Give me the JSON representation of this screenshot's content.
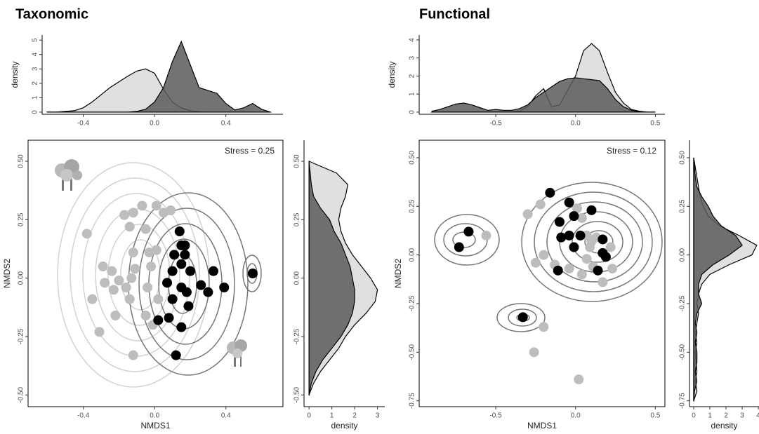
{
  "chart_data": [
    {
      "type": "area",
      "orientation": "vertical",
      "title": "Taxonomic",
      "ylabel": "density",
      "x": [
        -0.6,
        -0.55,
        -0.5,
        -0.45,
        -0.4,
        -0.35,
        -0.3,
        -0.25,
        -0.2,
        -0.15,
        -0.1,
        -0.05,
        0,
        0.05,
        0.1,
        0.15,
        0.2,
        0.25,
        0.3,
        0.35,
        0.4,
        0.45,
        0.5,
        0.55,
        0.6,
        0.65
      ],
      "series": [
        {
          "color": "#e0e0e0",
          "values": [
            0,
            0,
            0.05,
            0.1,
            0.3,
            0.7,
            1.2,
            1.7,
            2.1,
            2.5,
            2.85,
            3.0,
            2.7,
            1.6,
            0.7,
            0.3,
            0.1,
            0.03,
            0,
            0,
            0,
            0,
            0,
            0,
            0,
            0
          ]
        },
        {
          "color": "#5a5a5a",
          "values": [
            0,
            0,
            0,
            0,
            0,
            0,
            0,
            0,
            0,
            0,
            0.05,
            0.2,
            0.7,
            1.7,
            3.5,
            4.9,
            3.3,
            1.7,
            1.5,
            1.3,
            0.6,
            0.15,
            0.3,
            0.6,
            0.2,
            0
          ]
        }
      ],
      "xlim": [
        -0.63,
        0.72
      ],
      "xticks": [
        -0.4,
        {
          "value": 0,
          "label": "0.0"
        },
        0.4
      ],
      "ylim": [
        -0.15,
        5.35
      ],
      "yticks": [
        0,
        1,
        2,
        3,
        4,
        5
      ]
    },
    {
      "type": "scatter",
      "xlabel": "NMDS1",
      "ylabel": "NMDS2",
      "annotation": "Stress = 0.25",
      "series": [
        {
          "color": "#bdbdbd",
          "x": [
            -0.38,
            -0.17,
            -0.12,
            -0.07,
            0.01,
            0.05,
            0.09,
            -0.14,
            -0.05,
            -0.29,
            -0.24,
            -0.12,
            -0.03,
            0.01,
            -0.11,
            -0.02,
            -0.2,
            -0.13,
            -0.28,
            -0.23,
            -0.16,
            -0.04,
            -0.35,
            -0.14,
            0.02,
            -0.22,
            -0.05,
            -0.31,
            -0.01,
            -0.12
          ],
          "values": [
            0.19,
            0.27,
            0.28,
            0.31,
            0.31,
            0.28,
            0.29,
            0.22,
            0.21,
            0.05,
            0.03,
            0.11,
            0.11,
            0.12,
            0.04,
            0.05,
            -0.01,
            0,
            -0.02,
            -0.05,
            -0.04,
            -0.04,
            -0.09,
            -0.09,
            -0.09,
            -0.16,
            -0.16,
            -0.23,
            -0.2,
            -0.33
          ]
        },
        {
          "color": "#000000",
          "x": [
            0.14,
            0.15,
            0.17,
            0.11,
            0.17,
            0.15,
            0.1,
            0.2,
            0.33,
            0.07,
            0.15,
            0.18,
            0.26,
            0.39,
            0.3,
            0.1,
            0.19,
            0.08,
            0.02,
            0.15,
            0.12,
            0.55
          ],
          "values": [
            0.2,
            0.14,
            0.14,
            0.1,
            0.1,
            0.06,
            0.03,
            0.03,
            0.03,
            -0.02,
            -0.04,
            -0.06,
            -0.03,
            -0.04,
            -0.06,
            -0.09,
            -0.12,
            -0.17,
            -0.18,
            -0.21,
            -0.33,
            0.02
          ]
        }
      ],
      "xlim": [
        -0.71,
        0.72
      ],
      "xticks": [
        -0.4,
        {
          "value": 0,
          "label": "0.0"
        },
        0.4
      ],
      "ylim": [
        -0.55,
        0.59
      ],
      "yticks": [
        {
          "value": -0.5,
          "label": "-0.50"
        },
        -0.25,
        {
          "value": 0,
          "label": "0.00"
        },
        0.25,
        {
          "value": 0.5,
          "label": "0.50"
        }
      ]
    },
    {
      "type": "area",
      "orientation": "horizontal",
      "xlabel": "density",
      "x": [
        -0.5,
        -0.45,
        -0.4,
        -0.35,
        -0.3,
        -0.25,
        -0.2,
        -0.15,
        -0.1,
        -0.05,
        0,
        0.05,
        0.1,
        0.15,
        0.2,
        0.25,
        0.3,
        0.35,
        0.4,
        0.45,
        0.5
      ],
      "series": [
        {
          "color": "#e0e0e0",
          "values": [
            0,
            0.2,
            0.5,
            0.9,
            1.3,
            1.6,
            2.0,
            2.5,
            2.9,
            3.0,
            2.7,
            2.3,
            1.9,
            1.6,
            1.4,
            1.3,
            1.4,
            1.6,
            1.7,
            1.2,
            0
          ]
        },
        {
          "color": "#5a5a5a",
          "values": [
            0,
            0.1,
            0.3,
            0.6,
            1.0,
            1.4,
            1.7,
            1.9,
            2.0,
            2.0,
            1.9,
            1.8,
            1.6,
            1.4,
            1.1,
            0.9,
            0.5,
            0.2,
            0.1,
            0.05,
            0
          ]
        }
      ],
      "xlim": [
        -0.22,
        3.32
      ],
      "xticks": [
        0,
        1,
        2,
        3
      ],
      "ylim": [
        -0.55,
        0.59
      ],
      "yticks": [
        {
          "value": -0.5,
          "label": "-0.50"
        },
        -0.25,
        {
          "value": 0,
          "label": "0.00"
        },
        0.25,
        {
          "value": 0.5,
          "label": "0.50"
        }
      ]
    },
    {
      "type": "area",
      "orientation": "vertical",
      "title": "Functional",
      "ylabel": "density",
      "x": [
        -0.9,
        -0.85,
        -0.8,
        -0.75,
        -0.7,
        -0.65,
        -0.6,
        -0.55,
        -0.5,
        -0.45,
        -0.4,
        -0.35,
        -0.3,
        -0.25,
        -0.2,
        -0.15,
        -0.1,
        -0.05,
        0,
        0.05,
        0.1,
        0.15,
        0.2,
        0.25,
        0.3,
        0.35,
        0.4,
        0.45,
        0.5
      ],
      "series": [
        {
          "color": "#e0e0e0",
          "values": [
            0,
            0,
            0,
            0,
            0,
            0,
            0,
            0,
            0,
            0,
            0,
            0.05,
            0.3,
            0.9,
            1.3,
            0.3,
            0.4,
            1.2,
            2.0,
            3.4,
            3.8,
            3.4,
            2.2,
            1.1,
            0.5,
            0.15,
            0.05,
            0,
            0
          ]
        },
        {
          "color": "#5a5a5a",
          "values": [
            0.05,
            0.15,
            0.3,
            0.45,
            0.5,
            0.4,
            0.25,
            0.1,
            0.15,
            0.1,
            0.1,
            0.2,
            0.4,
            0.8,
            1.1,
            1.4,
            1.7,
            1.85,
            1.9,
            1.85,
            1.8,
            1.75,
            1.3,
            0.7,
            0.3,
            0.1,
            0.03,
            0,
            0
          ]
        }
      ],
      "xlim": [
        -0.98,
        0.56
      ],
      "xticks": [
        -0.5,
        {
          "value": 0,
          "label": "0.0"
        },
        0.5
      ],
      "ylim": [
        -0.12,
        4.27
      ],
      "yticks": [
        0,
        1,
        2,
        3,
        4
      ]
    },
    {
      "type": "scatter",
      "xlabel": "NMDS1",
      "ylabel": "NMDS2",
      "annotation": "Stress = 0.12",
      "series": [
        {
          "color": "#bdbdbd",
          "x": [
            -0.22,
            -0.3,
            0.01,
            0.04,
            0.07,
            0.1,
            0.13,
            0.09,
            0.22,
            0.07,
            -0.25,
            -0.2,
            -0.13,
            -0.04,
            0.04,
            0.11,
            0.17,
            0.23,
            -0.56,
            -0.2,
            -0.26,
            0.02
          ],
          "values": [
            0.26,
            0.21,
            0.24,
            0.19,
            0.1,
            0.07,
            0.09,
            0.04,
            0.04,
            -0.02,
            -0.04,
            0,
            -0.05,
            -0.07,
            -0.1,
            -0.06,
            -0.14,
            -0.07,
            0.1,
            -0.37,
            -0.5,
            -0.64
          ]
        },
        {
          "color": "#000000",
          "x": [
            -0.16,
            -0.04,
            0.1,
            -0.1,
            -0.01,
            -0.04,
            0.03,
            -0.09,
            0.17,
            -0.01,
            0.17,
            0.19,
            -0.11,
            0.14,
            -0.67,
            -0.73,
            -0.33
          ],
          "values": [
            0.32,
            0.27,
            0.23,
            0.17,
            0.2,
            0.1,
            0.1,
            0.09,
            0.08,
            0.04,
            0.01,
            -0.01,
            -0.08,
            -0.08,
            0.12,
            0.04,
            -0.32
          ]
        }
      ],
      "xlim": [
        -0.98,
        0.56
      ],
      "xticks": [
        -0.5,
        {
          "value": 0,
          "label": "0.0"
        },
        0.5
      ],
      "ylim": [
        -0.78,
        0.59
      ],
      "yticks": [
        -0.75,
        {
          "value": -0.5,
          "label": "-0.50"
        },
        -0.25,
        {
          "value": 0,
          "label": "0.00"
        },
        0.25,
        {
          "value": 0.5,
          "label": "0.50"
        }
      ]
    },
    {
      "type": "area",
      "orientation": "horizontal",
      "xlabel": "density",
      "x": [
        -0.75,
        -0.7,
        -0.65,
        -0.6,
        -0.55,
        -0.5,
        -0.45,
        -0.4,
        -0.35,
        -0.3,
        -0.25,
        -0.2,
        -0.15,
        -0.1,
        -0.05,
        0,
        0.05,
        0.1,
        0.15,
        0.2,
        0.25,
        0.3,
        0.35,
        0.4,
        0.45,
        0.5
      ],
      "series": [
        {
          "color": "#e0e0e0",
          "values": [
            0,
            0.2,
            0.1,
            0.2,
            0.15,
            0.1,
            0.2,
            0.1,
            0.2,
            0.3,
            0.2,
            0.3,
            0.5,
            1.0,
            2.2,
            3.6,
            3.9,
            2.8,
            1.6,
            0.9,
            0.6,
            0.4,
            0.3,
            0.2,
            0.1,
            0
          ]
        },
        {
          "color": "#5a5a5a",
          "values": [
            0,
            0.05,
            0.2,
            0.1,
            0.2,
            0.2,
            0.1,
            0.2,
            0.1,
            0.2,
            0.5,
            0.3,
            0.3,
            0.5,
            1.2,
            2.2,
            3.0,
            2.6,
            1.7,
            1.2,
            0.9,
            0.5,
            0.2,
            0.1,
            0.05,
            0
          ]
        }
      ],
      "xlim": [
        -0.26,
        4.04
      ],
      "xticks": [
        0,
        1,
        2,
        3,
        4
      ],
      "ylim": [
        -0.78,
        0.59
      ],
      "yticks": [
        -0.75,
        {
          "value": -0.5,
          "label": "-0.50"
        },
        -0.25,
        {
          "value": 0,
          "label": "0.00"
        },
        0.25,
        {
          "value": 0.5,
          "label": "0.50"
        }
      ]
    }
  ]
}
